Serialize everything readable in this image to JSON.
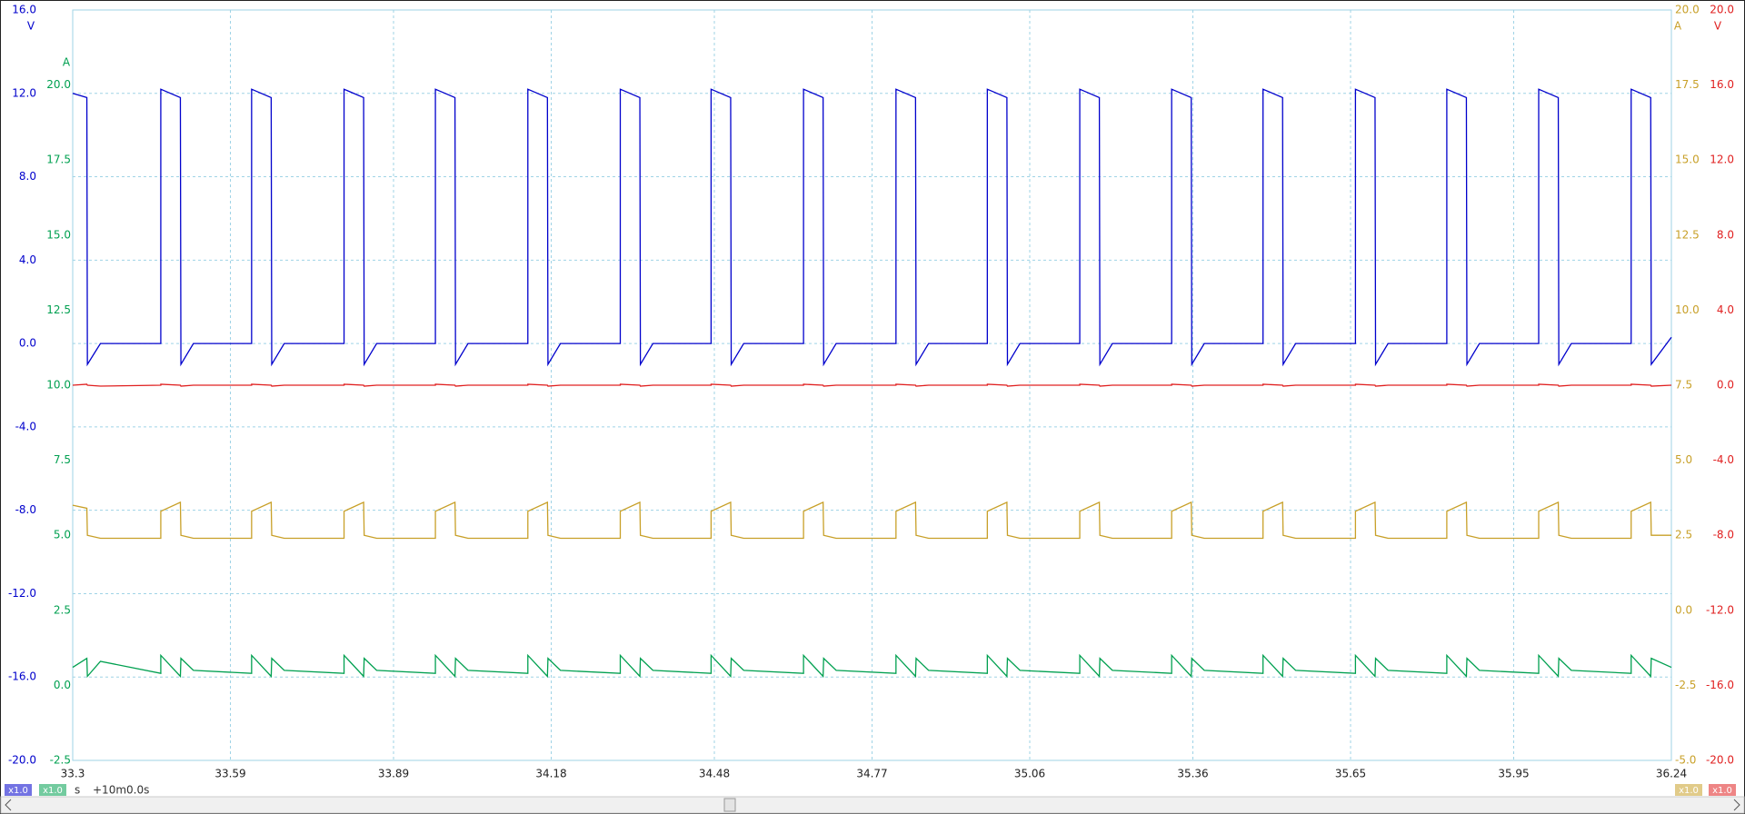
{
  "chart_data": {
    "type": "line",
    "grid": true,
    "x_unit": "s",
    "x_offset_label": "+10m0.0s",
    "xlim": [
      33.3,
      36.24
    ],
    "xticks": [
      33.3,
      33.59,
      33.89,
      34.18,
      34.48,
      34.77,
      35.06,
      35.36,
      35.65,
      35.95,
      36.24
    ],
    "x": [
      33.3,
      33.326,
      33.327,
      33.351,
      33.462,
      33.462,
      33.498,
      33.499,
      33.522,
      33.629,
      33.629,
      33.665,
      33.666,
      33.689,
      33.799,
      33.799,
      33.835,
      33.836,
      33.859,
      33.967,
      33.967,
      34.003,
      34.004,
      34.027,
      34.137,
      34.137,
      34.173,
      34.174,
      34.197,
      34.307,
      34.307,
      34.343,
      34.344,
      34.367,
      34.474,
      34.474,
      34.51,
      34.511,
      34.534,
      34.644,
      34.644,
      34.68,
      34.681,
      34.704,
      34.814,
      34.814,
      34.85,
      34.851,
      34.874,
      34.982,
      34.982,
      35.018,
      35.019,
      35.042,
      35.152,
      35.152,
      35.188,
      35.189,
      35.212,
      35.321,
      35.321,
      35.357,
      35.358,
      35.381,
      35.489,
      35.489,
      35.525,
      35.526,
      35.549,
      35.659,
      35.659,
      35.695,
      35.696,
      35.719,
      35.827,
      35.827,
      35.863,
      35.864,
      35.887,
      35.996,
      35.996,
      36.032,
      36.033,
      36.056,
      36.166,
      36.166,
      36.202,
      36.203,
      36.24
    ],
    "series": [
      {
        "color": "#0000cc",
        "unit": "V",
        "scale_label": "x1.0",
        "ylim": [
          -20,
          16
        ],
        "yticks": [
          {
            "value": 16,
            "label": "16.0"
          },
          {
            "value": 12,
            "label": "12.0"
          },
          {
            "value": 8,
            "label": "8.0"
          },
          {
            "value": 4,
            "label": "4.0"
          },
          {
            "value": 0,
            "label": "0.0"
          },
          {
            "value": -4,
            "label": "-4.0"
          },
          {
            "value": -8,
            "label": "-8.0"
          },
          {
            "value": -12,
            "label": "-12.0"
          },
          {
            "value": -16,
            "label": "-16.0"
          },
          {
            "value": -20,
            "label": "-20.0"
          }
        ],
        "values": [
          12.0,
          11.8,
          -1.0,
          0.0,
          0.0,
          12.2,
          11.8,
          -1.0,
          0.0,
          0.0,
          12.2,
          11.8,
          -1.0,
          0.0,
          0.0,
          12.2,
          11.8,
          -1.0,
          0.0,
          0.0,
          12.2,
          11.8,
          -1.0,
          0.0,
          0.0,
          12.2,
          11.8,
          -1.0,
          0.0,
          0.0,
          12.2,
          11.8,
          -1.0,
          0.0,
          0.0,
          12.2,
          11.8,
          -1.0,
          0.0,
          0.0,
          12.2,
          11.8,
          -1.0,
          0.0,
          0.0,
          12.2,
          11.8,
          -1.0,
          0.0,
          0.0,
          12.2,
          11.8,
          -1.0,
          0.0,
          0.0,
          12.2,
          11.8,
          -1.0,
          0.0,
          0.0,
          12.2,
          11.8,
          -1.0,
          0.0,
          0.0,
          12.2,
          11.8,
          -1.0,
          0.0,
          0.0,
          12.2,
          11.8,
          -1.0,
          0.0,
          0.0,
          12.2,
          11.8,
          -1.0,
          0.0,
          0.0,
          12.2,
          11.8,
          -1.0,
          0.0,
          0.0,
          12.2,
          11.8,
          -1.0,
          0.3
        ]
      },
      {
        "color": "#00a050",
        "unit": "A",
        "scale_label": "x1.0",
        "ylim": [
          -2.5,
          22.5
        ],
        "yticks": [
          {
            "value": 20,
            "label": "20.0"
          },
          17.5,
          {
            "value": 15,
            "label": "15.0"
          },
          12.5,
          {
            "value": 10,
            "label": "10.0"
          },
          7.5,
          {
            "value": 5,
            "label": "5.0"
          },
          2.5,
          {
            "value": 0,
            "label": "0.0"
          },
          -2.5
        ],
        "values": [
          0.6,
          0.9,
          0.3,
          0.8,
          0.4,
          1.0,
          0.3,
          0.9,
          0.5,
          0.4,
          1.0,
          0.3,
          0.9,
          0.5,
          0.4,
          1.0,
          0.3,
          0.9,
          0.5,
          0.4,
          1.0,
          0.3,
          0.9,
          0.5,
          0.4,
          1.0,
          0.3,
          0.9,
          0.5,
          0.4,
          1.0,
          0.3,
          0.9,
          0.5,
          0.4,
          1.0,
          0.3,
          0.9,
          0.5,
          0.4,
          1.0,
          0.3,
          0.9,
          0.5,
          0.4,
          1.0,
          0.3,
          0.9,
          0.5,
          0.4,
          1.0,
          0.3,
          0.9,
          0.5,
          0.4,
          1.0,
          0.3,
          0.9,
          0.5,
          0.4,
          1.0,
          0.3,
          0.9,
          0.5,
          0.4,
          1.0,
          0.3,
          0.9,
          0.5,
          0.4,
          1.0,
          0.3,
          0.9,
          0.5,
          0.4,
          1.0,
          0.3,
          0.9,
          0.5,
          0.4,
          1.0,
          0.3,
          0.9,
          0.5,
          0.4,
          1.0,
          0.3,
          0.9,
          0.6
        ]
      },
      {
        "color": "#c8a028",
        "unit": "A",
        "scale_label": "x1.0",
        "ylim": [
          -5,
          20
        ],
        "yticks": [
          {
            "value": 20,
            "label": "20.0"
          },
          17.5,
          {
            "value": 15,
            "label": "15.0"
          },
          12.5,
          {
            "value": 10,
            "label": "10.0"
          },
          7.5,
          {
            "value": 5,
            "label": "5.0"
          },
          2.5,
          {
            "value": 0,
            "label": "0.0"
          },
          -2.5,
          {
            "value": -5,
            "label": "-5.0"
          }
        ],
        "values": [
          3.5,
          3.4,
          2.5,
          2.4,
          2.4,
          3.3,
          3.6,
          2.5,
          2.4,
          2.4,
          3.3,
          3.6,
          2.5,
          2.4,
          2.4,
          3.3,
          3.6,
          2.5,
          2.4,
          2.4,
          3.3,
          3.6,
          2.5,
          2.4,
          2.4,
          3.3,
          3.6,
          2.5,
          2.4,
          2.4,
          3.3,
          3.6,
          2.5,
          2.4,
          2.4,
          3.3,
          3.6,
          2.5,
          2.4,
          2.4,
          3.3,
          3.6,
          2.5,
          2.4,
          2.4,
          3.3,
          3.6,
          2.5,
          2.4,
          2.4,
          3.3,
          3.6,
          2.5,
          2.4,
          2.4,
          3.3,
          3.6,
          2.5,
          2.4,
          2.4,
          3.3,
          3.6,
          2.5,
          2.4,
          2.4,
          3.3,
          3.6,
          2.5,
          2.4,
          2.4,
          3.3,
          3.6,
          2.5,
          2.4,
          2.4,
          3.3,
          3.6,
          2.5,
          2.4,
          2.4,
          3.3,
          3.6,
          2.5,
          2.4,
          2.4,
          3.3,
          3.6,
          2.5,
          2.5
        ]
      },
      {
        "color": "#e02020",
        "unit": "V",
        "scale_label": "x1.0",
        "ylim": [
          -20,
          20
        ],
        "yticks": [
          {
            "value": 20,
            "label": "20.0"
          },
          {
            "value": 16,
            "label": "16.0"
          },
          {
            "value": 12,
            "label": "12.0"
          },
          {
            "value": 8,
            "label": "8.0"
          },
          {
            "value": 4,
            "label": "4.0"
          },
          {
            "value": 0,
            "label": "0.0"
          },
          {
            "value": -4,
            "label": "-4.0"
          },
          {
            "value": -8,
            "label": "-8.0"
          },
          {
            "value": -12,
            "label": "-12.0"
          },
          {
            "value": -16,
            "label": "-16.0"
          },
          {
            "value": -20,
            "label": "-20.0"
          }
        ],
        "values": [
          0.0,
          0.05,
          0.0,
          -0.05,
          0.0,
          0.05,
          0.0,
          -0.05,
          0.0,
          0.0,
          0.05,
          0.0,
          -0.05,
          0.0,
          0.0,
          0.05,
          0.0,
          -0.05,
          0.0,
          0.0,
          0.05,
          0.0,
          -0.05,
          0.0,
          0.0,
          0.05,
          0.0,
          -0.05,
          0.0,
          0.0,
          0.05,
          0.0,
          -0.05,
          0.0,
          0.0,
          0.05,
          0.0,
          -0.05,
          0.0,
          0.0,
          0.05,
          0.0,
          -0.05,
          0.0,
          0.0,
          0.05,
          0.0,
          -0.05,
          0.0,
          0.0,
          0.05,
          0.0,
          -0.05,
          0.0,
          0.0,
          0.05,
          0.0,
          -0.05,
          0.0,
          0.0,
          0.05,
          0.0,
          -0.05,
          0.0,
          0.0,
          0.05,
          0.0,
          -0.05,
          0.0,
          0.0,
          0.05,
          0.0,
          -0.05,
          0.0,
          0.0,
          0.05,
          0.0,
          -0.05,
          0.0,
          0.0,
          0.05,
          0.0,
          -0.05,
          0.0,
          0.0,
          0.05,
          0.0,
          -0.05,
          0.0
        ]
      }
    ]
  }
}
